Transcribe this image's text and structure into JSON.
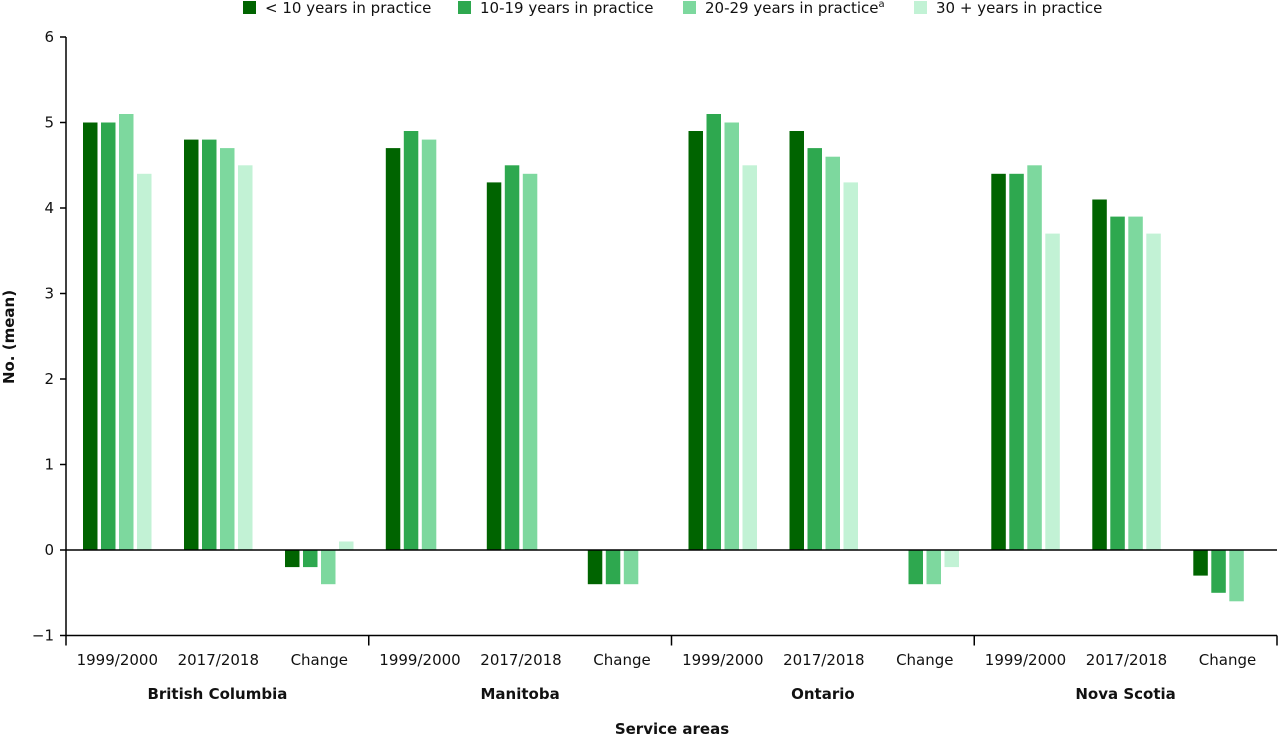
{
  "chart_data": {
    "type": "bar",
    "xlabel": "Service areas",
    "ylabel": "No. (mean)",
    "ylim": [
      -1,
      6
    ],
    "yticks": [
      6,
      5,
      4,
      3,
      2,
      1,
      0,
      -1
    ],
    "ytick_labels": [
      "6",
      "5",
      "4",
      "3",
      "2",
      "1",
      "0",
      "−1"
    ],
    "grid": false,
    "legend_position": "top",
    "groups": [
      "British Columbia",
      "Manitoba",
      "Ontario",
      "Nova Scotia"
    ],
    "periods": [
      "1999/2000",
      "2017/2018",
      "Change"
    ],
    "series": [
      {
        "name": "< 10 years in practice",
        "label_main": "< 10 years in practice",
        "label_sup": "",
        "color": "#006400",
        "values": [
          [
            5.0,
            4.8,
            -0.2
          ],
          [
            4.7,
            4.3,
            -0.4
          ],
          [
            4.9,
            4.9,
            0.0
          ],
          [
            4.4,
            4.1,
            -0.3
          ]
        ]
      },
      {
        "name": "10-19 years in practice",
        "label_main": "10-19 years in practice",
        "label_sup": "",
        "color": "#2ea84f",
        "values": [
          [
            5.0,
            4.8,
            -0.2
          ],
          [
            4.9,
            4.5,
            -0.4
          ],
          [
            5.1,
            4.7,
            -0.4
          ],
          [
            4.4,
            3.9,
            -0.5
          ]
        ]
      },
      {
        "name": "20-29 years in practice",
        "label_main": "20-29 years in practice",
        "label_sup": "a",
        "color": "#7dd89e",
        "values": [
          [
            5.1,
            4.7,
            -0.4
          ],
          [
            4.8,
            4.4,
            -0.4
          ],
          [
            5.0,
            4.6,
            -0.4
          ],
          [
            4.5,
            3.9,
            -0.6
          ]
        ]
      },
      {
        "name": "30+ years in practice",
        "label_main": "30 + years in practice",
        "label_sup": "",
        "color": "#c2f2d5",
        "values": [
          [
            4.4,
            4.5,
            0.1
          ],
          [
            null,
            null,
            null
          ],
          [
            4.5,
            4.3,
            -0.2
          ],
          [
            3.7,
            3.7,
            null
          ]
        ]
      }
    ]
  }
}
